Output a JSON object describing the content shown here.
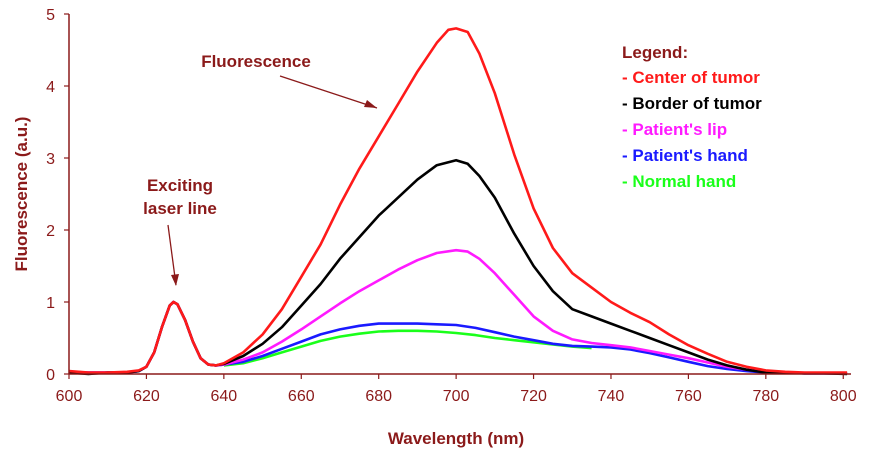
{
  "chart_data": {
    "type": "line",
    "xlabel": "Wavelength (nm)",
    "ylabel": "Fluorescence (a.u.)",
    "xlim": [
      600,
      802
    ],
    "ylim": [
      0,
      5
    ],
    "x_ticks": [
      "600",
      "620",
      "640",
      "660",
      "680",
      "700",
      "720",
      "740",
      "760",
      "780",
      "800"
    ],
    "y_ticks": [
      "0",
      "1",
      "2",
      "3",
      "4",
      "5"
    ],
    "grid": false,
    "legend_placement": "top-right",
    "legend_title": "Legend:",
    "annotations": {
      "fluorescence": "Fluorescence",
      "exciting_line1": "Exciting",
      "exciting_line2": "laser line"
    },
    "series": [
      {
        "name": "- Center of tumor",
        "color": "#ff1a1a",
        "points": [
          [
            600,
            0.04
          ],
          [
            605,
            0.02
          ],
          [
            610,
            0.02
          ],
          [
            615,
            0.03
          ],
          [
            618,
            0.05
          ],
          [
            620,
            0.1
          ],
          [
            622,
            0.3
          ],
          [
            624,
            0.65
          ],
          [
            626,
            0.95
          ],
          [
            627,
            1.0
          ],
          [
            628,
            0.97
          ],
          [
            630,
            0.75
          ],
          [
            632,
            0.45
          ],
          [
            634,
            0.22
          ],
          [
            636,
            0.13
          ],
          [
            638,
            0.12
          ],
          [
            640,
            0.15
          ],
          [
            645,
            0.3
          ],
          [
            650,
            0.55
          ],
          [
            655,
            0.9
          ],
          [
            660,
            1.35
          ],
          [
            665,
            1.8
          ],
          [
            670,
            2.35
          ],
          [
            675,
            2.85
          ],
          [
            680,
            3.3
          ],
          [
            685,
            3.75
          ],
          [
            690,
            4.2
          ],
          [
            695,
            4.6
          ],
          [
            698,
            4.78
          ],
          [
            700,
            4.8
          ],
          [
            703,
            4.75
          ],
          [
            706,
            4.45
          ],
          [
            710,
            3.9
          ],
          [
            715,
            3.05
          ],
          [
            720,
            2.3
          ],
          [
            725,
            1.75
          ],
          [
            730,
            1.4
          ],
          [
            735,
            1.2
          ],
          [
            740,
            1.0
          ],
          [
            745,
            0.85
          ],
          [
            750,
            0.72
          ],
          [
            755,
            0.55
          ],
          [
            760,
            0.4
          ],
          [
            765,
            0.28
          ],
          [
            770,
            0.17
          ],
          [
            775,
            0.1
          ],
          [
            780,
            0.05
          ],
          [
            785,
            0.03
          ],
          [
            790,
            0.02
          ],
          [
            795,
            0.02
          ],
          [
            801,
            0.02
          ]
        ]
      },
      {
        "name": "- Border of tumor",
        "color": "#000000",
        "points": [
          [
            600,
            0.02
          ],
          [
            605,
            0.0
          ],
          [
            610,
            0.02
          ],
          [
            615,
            0.02
          ],
          [
            618,
            0.04
          ],
          [
            620,
            0.1
          ],
          [
            622,
            0.3
          ],
          [
            624,
            0.65
          ],
          [
            626,
            0.95
          ],
          [
            627,
            1.0
          ],
          [
            628,
            0.97
          ],
          [
            630,
            0.75
          ],
          [
            632,
            0.45
          ],
          [
            634,
            0.22
          ],
          [
            636,
            0.13
          ],
          [
            638,
            0.12
          ],
          [
            640,
            0.14
          ],
          [
            645,
            0.25
          ],
          [
            650,
            0.42
          ],
          [
            655,
            0.65
          ],
          [
            660,
            0.95
          ],
          [
            665,
            1.25
          ],
          [
            670,
            1.6
          ],
          [
            675,
            1.9
          ],
          [
            680,
            2.2
          ],
          [
            685,
            2.45
          ],
          [
            690,
            2.7
          ],
          [
            695,
            2.9
          ],
          [
            700,
            2.97
          ],
          [
            703,
            2.92
          ],
          [
            706,
            2.75
          ],
          [
            710,
            2.45
          ],
          [
            715,
            1.95
          ],
          [
            720,
            1.5
          ],
          [
            725,
            1.15
          ],
          [
            730,
            0.9
          ],
          [
            735,
            0.8
          ],
          [
            740,
            0.7
          ],
          [
            745,
            0.6
          ],
          [
            750,
            0.5
          ],
          [
            755,
            0.4
          ],
          [
            760,
            0.3
          ],
          [
            765,
            0.2
          ],
          [
            770,
            0.12
          ],
          [
            775,
            0.06
          ],
          [
            780,
            0.02
          ],
          [
            785,
            0.02
          ],
          [
            790,
            0.01
          ],
          [
            795,
            0.01
          ],
          [
            801,
            0.0
          ]
        ]
      },
      {
        "name": "- Patient's lip",
        "color": "#ff1aff",
        "points": [
          [
            600,
            0.02
          ],
          [
            605,
            0.02
          ],
          [
            610,
            0.02
          ],
          [
            615,
            0.02
          ],
          [
            618,
            0.04
          ],
          [
            620,
            0.1
          ],
          [
            622,
            0.3
          ],
          [
            624,
            0.65
          ],
          [
            626,
            0.95
          ],
          [
            627,
            1.0
          ],
          [
            628,
            0.97
          ],
          [
            630,
            0.75
          ],
          [
            632,
            0.45
          ],
          [
            634,
            0.22
          ],
          [
            636,
            0.13
          ],
          [
            638,
            0.12
          ],
          [
            640,
            0.13
          ],
          [
            645,
            0.2
          ],
          [
            650,
            0.3
          ],
          [
            655,
            0.45
          ],
          [
            660,
            0.62
          ],
          [
            665,
            0.8
          ],
          [
            670,
            0.98
          ],
          [
            675,
            1.15
          ],
          [
            680,
            1.3
          ],
          [
            685,
            1.45
          ],
          [
            690,
            1.58
          ],
          [
            695,
            1.68
          ],
          [
            700,
            1.72
          ],
          [
            703,
            1.7
          ],
          [
            706,
            1.6
          ],
          [
            710,
            1.4
          ],
          [
            715,
            1.1
          ],
          [
            720,
            0.8
          ],
          [
            725,
            0.6
          ],
          [
            730,
            0.48
          ],
          [
            735,
            0.43
          ],
          [
            740,
            0.4
          ],
          [
            745,
            0.37
          ],
          [
            750,
            0.32
          ],
          [
            755,
            0.27
          ],
          [
            760,
            0.22
          ],
          [
            765,
            0.16
          ],
          [
            770,
            0.1
          ],
          [
            775,
            0.06
          ],
          [
            780,
            0.03
          ],
          [
            785,
            0.02
          ],
          [
            790,
            0.01
          ],
          [
            795,
            0.01
          ],
          [
            801,
            0.01
          ]
        ]
      },
      {
        "name": "- Patient's hand",
        "color": "#1a1aff",
        "points": [
          [
            600,
            0.03
          ],
          [
            605,
            0.02
          ],
          [
            610,
            0.02
          ],
          [
            615,
            0.02
          ],
          [
            618,
            0.04
          ],
          [
            620,
            0.1
          ],
          [
            622,
            0.3
          ],
          [
            624,
            0.65
          ],
          [
            626,
            0.95
          ],
          [
            627,
            1.0
          ],
          [
            628,
            0.97
          ],
          [
            630,
            0.75
          ],
          [
            632,
            0.45
          ],
          [
            634,
            0.22
          ],
          [
            636,
            0.13
          ],
          [
            638,
            0.12
          ],
          [
            640,
            0.13
          ],
          [
            645,
            0.17
          ],
          [
            650,
            0.25
          ],
          [
            655,
            0.35
          ],
          [
            660,
            0.45
          ],
          [
            665,
            0.55
          ],
          [
            670,
            0.62
          ],
          [
            675,
            0.67
          ],
          [
            680,
            0.7
          ],
          [
            685,
            0.7
          ],
          [
            690,
            0.7
          ],
          [
            695,
            0.69
          ],
          [
            700,
            0.68
          ],
          [
            705,
            0.64
          ],
          [
            710,
            0.58
          ],
          [
            715,
            0.52
          ],
          [
            720,
            0.47
          ],
          [
            725,
            0.42
          ],
          [
            730,
            0.39
          ],
          [
            735,
            0.38
          ],
          [
            740,
            0.37
          ],
          [
            745,
            0.34
          ],
          [
            750,
            0.29
          ],
          [
            755,
            0.23
          ],
          [
            760,
            0.17
          ],
          [
            765,
            0.11
          ],
          [
            770,
            0.07
          ],
          [
            775,
            0.04
          ],
          [
            780,
            0.02
          ],
          [
            785,
            0.02
          ],
          [
            790,
            0.01
          ],
          [
            795,
            0.01
          ],
          [
            801,
            0.01
          ]
        ]
      },
      {
        "name": "- Normal hand",
        "color": "#1aff1a",
        "points": [
          [
            640,
            0.12
          ],
          [
            645,
            0.15
          ],
          [
            650,
            0.22
          ],
          [
            655,
            0.3
          ],
          [
            660,
            0.38
          ],
          [
            665,
            0.46
          ],
          [
            670,
            0.52
          ],
          [
            675,
            0.56
          ],
          [
            680,
            0.59
          ],
          [
            685,
            0.6
          ],
          [
            690,
            0.6
          ],
          [
            695,
            0.59
          ],
          [
            700,
            0.57
          ],
          [
            705,
            0.54
          ],
          [
            710,
            0.5
          ],
          [
            715,
            0.47
          ],
          [
            720,
            0.44
          ],
          [
            725,
            0.41
          ],
          [
            730,
            0.38
          ],
          [
            735,
            0.36
          ]
        ]
      }
    ]
  }
}
